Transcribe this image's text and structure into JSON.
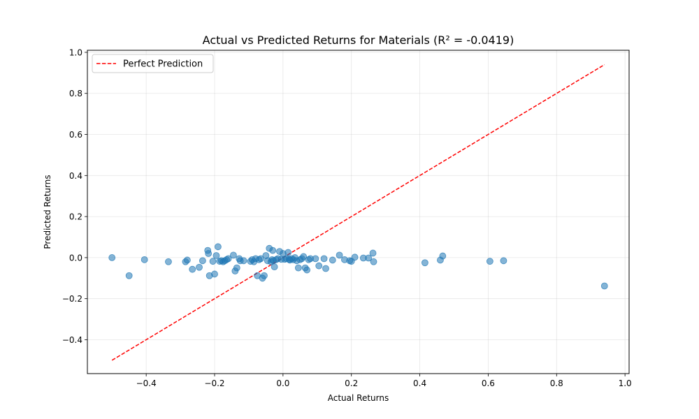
{
  "chart_data": {
    "type": "scatter",
    "title": "Actual vs Predicted Returns for Materials (R² = -0.0419)",
    "xlabel": "Actual Returns",
    "ylabel": "Predicted Returns",
    "xlim": [
      -0.572,
      1.012
    ],
    "ylim": [
      -0.565,
      1.01
    ],
    "xticks": [
      -0.4,
      -0.2,
      0.0,
      0.2,
      0.4,
      0.6,
      0.8,
      1.0
    ],
    "xtick_labels": [
      "−0.4",
      "−0.2",
      "0.0",
      "0.2",
      "0.4",
      "0.6",
      "0.8",
      "1.0"
    ],
    "yticks": [
      -0.4,
      -0.2,
      0.0,
      0.2,
      0.4,
      0.6,
      0.8,
      1.0
    ],
    "ytick_labels": [
      "−0.4",
      "−0.2",
      "0.0",
      "0.2",
      "0.4",
      "0.6",
      "0.8",
      "1.0"
    ],
    "grid": true,
    "legend": {
      "position": "upper-left",
      "entries": [
        "Perfect Prediction"
      ]
    },
    "colors": {
      "points": "#1f77b4",
      "reference_line": "#ff0000"
    },
    "reference_line": {
      "label": "Perfect Prediction",
      "x": [
        -0.5,
        0.94
      ],
      "y": [
        -0.5,
        0.94
      ],
      "style": "dashed"
    },
    "series": [
      {
        "x": [
          -0.5,
          -0.45,
          -0.405,
          -0.335,
          -0.285,
          -0.28,
          -0.265,
          -0.245,
          -0.235,
          -0.22,
          -0.218,
          -0.215,
          -0.205,
          -0.2,
          -0.195,
          -0.19,
          -0.185,
          -0.18,
          -0.175,
          -0.17,
          -0.165,
          -0.16,
          -0.145,
          -0.14,
          -0.135,
          -0.128,
          -0.125,
          -0.115,
          -0.095,
          -0.09,
          -0.085,
          -0.08,
          -0.075,
          -0.07,
          -0.065,
          -0.06,
          -0.055,
          -0.05,
          -0.045,
          -0.04,
          -0.035,
          -0.032,
          -0.03,
          -0.028,
          -0.025,
          -0.02,
          -0.015,
          -0.01,
          -0.005,
          0.0,
          0.005,
          0.01,
          0.015,
          0.018,
          0.02,
          0.025,
          0.03,
          0.035,
          0.04,
          0.045,
          0.05,
          0.055,
          0.06,
          0.065,
          0.07,
          0.075,
          0.08,
          0.095,
          0.105,
          0.12,
          0.125,
          0.145,
          0.165,
          0.18,
          0.195,
          0.2,
          0.21,
          0.235,
          0.25,
          0.263,
          0.265,
          0.415,
          0.46,
          0.467,
          0.605,
          0.645,
          0.94
        ],
        "y": [
          0.0,
          -0.088,
          -0.01,
          -0.02,
          -0.02,
          -0.012,
          -0.057,
          -0.047,
          -0.015,
          0.035,
          0.02,
          -0.088,
          -0.018,
          -0.08,
          0.01,
          0.053,
          -0.018,
          -0.015,
          -0.02,
          -0.015,
          -0.01,
          -0.005,
          0.012,
          -0.065,
          -0.05,
          -0.005,
          -0.015,
          -0.015,
          -0.018,
          -0.01,
          -0.02,
          -0.005,
          -0.088,
          -0.01,
          -0.005,
          -0.1,
          -0.088,
          0.01,
          -0.015,
          0.045,
          -0.02,
          -0.01,
          0.035,
          -0.015,
          -0.045,
          -0.01,
          -0.005,
          0.03,
          -0.008,
          0.02,
          -0.008,
          -0.005,
          0.025,
          -0.008,
          -0.012,
          -0.005,
          -0.01,
          0.0,
          -0.015,
          -0.05,
          -0.01,
          -0.005,
          0.005,
          -0.05,
          -0.06,
          -0.01,
          -0.005,
          -0.005,
          -0.04,
          -0.005,
          -0.053,
          -0.012,
          0.012,
          -0.01,
          -0.015,
          -0.018,
          0.002,
          -0.002,
          -0.002,
          0.022,
          -0.02,
          -0.025,
          -0.012,
          0.008,
          -0.018,
          -0.015,
          -0.138
        ]
      }
    ]
  }
}
